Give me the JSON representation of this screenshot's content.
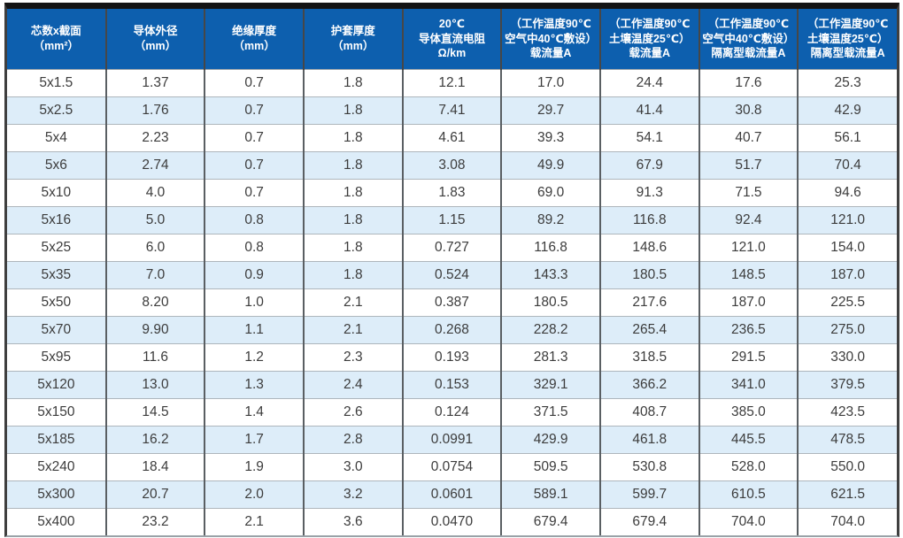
{
  "colors": {
    "header_bg": "#0d5fae",
    "header_text": "#ffffff",
    "row_bg": "#ffffff",
    "row_alt_bg": "#ddedf9",
    "cell_text": "#3c3c3c",
    "outer_border_top": "#141414",
    "outer_border_side": "#3f3f3f"
  },
  "chart_data": {
    "type": "table",
    "columns": [
      "芯数x截面\n（mm²）",
      "导体外径\n（mm）",
      "绝缘厚度\n（mm）",
      "护套厚度\n（mm）",
      "20℃\n导体直流电阻\nΩ/km",
      "（工作温度90℃\n空气中40℃敷设）\n载流量A",
      "（工作温度90℃\n土壤温度25℃）\n载流量A",
      "（工作温度90℃\n空气中40℃敷设）\n隔离型载流量A",
      "（工作温度90℃\n土壤温度25℃）\n隔离型载流量A"
    ],
    "rows": [
      [
        "5x1.5",
        "1.37",
        "0.7",
        "1.8",
        "12.1",
        "17.0",
        "24.4",
        "17.6",
        "25.3"
      ],
      [
        "5x2.5",
        "1.76",
        "0.7",
        "1.8",
        "7.41",
        "29.7",
        "41.4",
        "30.8",
        "42.9"
      ],
      [
        "5x4",
        "2.23",
        "0.7",
        "1.8",
        "4.61",
        "39.3",
        "54.1",
        "40.7",
        "56.1"
      ],
      [
        "5x6",
        "2.74",
        "0.7",
        "1.8",
        "3.08",
        "49.9",
        "67.9",
        "51.7",
        "70.4"
      ],
      [
        "5x10",
        "4.0",
        "0.7",
        "1.8",
        "1.83",
        "69.0",
        "91.3",
        "71.5",
        "94.6"
      ],
      [
        "5x16",
        "5.0",
        "0.8",
        "1.8",
        "1.15",
        "89.2",
        "116.8",
        "92.4",
        "121.0"
      ],
      [
        "5x25",
        "6.0",
        "0.8",
        "1.8",
        "0.727",
        "116.8",
        "148.6",
        "121.0",
        "154.0"
      ],
      [
        "5x35",
        "7.0",
        "0.9",
        "1.8",
        "0.524",
        "143.3",
        "180.5",
        "148.5",
        "187.0"
      ],
      [
        "5x50",
        "8.20",
        "1.0",
        "2.1",
        "0.387",
        "180.5",
        "217.6",
        "187.0",
        "225.5"
      ],
      [
        "5x70",
        "9.90",
        "1.1",
        "2.1",
        "0.268",
        "228.2",
        "265.4",
        "236.5",
        "275.0"
      ],
      [
        "5x95",
        "11.6",
        "1.2",
        "2.3",
        "0.193",
        "281.3",
        "318.5",
        "291.5",
        "330.0"
      ],
      [
        "5x120",
        "13.0",
        "1.3",
        "2.4",
        "0.153",
        "329.1",
        "366.2",
        "341.0",
        "379.5"
      ],
      [
        "5x150",
        "14.5",
        "1.4",
        "2.6",
        "0.124",
        "371.5",
        "408.7",
        "385.0",
        "423.5"
      ],
      [
        "5x185",
        "16.2",
        "1.7",
        "2.8",
        "0.0991",
        "429.9",
        "461.8",
        "445.5",
        "478.5"
      ],
      [
        "5x240",
        "18.4",
        "1.9",
        "3.0",
        "0.0754",
        "509.5",
        "530.8",
        "528.0",
        "550.0"
      ],
      [
        "5x300",
        "20.7",
        "2.0",
        "3.2",
        "0.0601",
        "589.1",
        "599.7",
        "610.5",
        "621.5"
      ],
      [
        "5x400",
        "23.2",
        "2.1",
        "3.6",
        "0.0470",
        "679.4",
        "679.4",
        "704.0",
        "704.0"
      ]
    ]
  }
}
